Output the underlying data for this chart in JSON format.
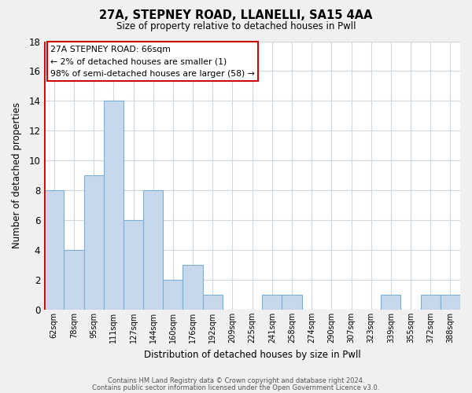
{
  "title1": "27A, STEPNEY ROAD, LLANELLI, SA15 4AA",
  "title2": "Size of property relative to detached houses in Pwll",
  "xlabel": "Distribution of detached houses by size in Pwll",
  "ylabel": "Number of detached properties",
  "bar_labels": [
    "62sqm",
    "78sqm",
    "95sqm",
    "111sqm",
    "127sqm",
    "144sqm",
    "160sqm",
    "176sqm",
    "192sqm",
    "209sqm",
    "225sqm",
    "241sqm",
    "258sqm",
    "274sqm",
    "290sqm",
    "307sqm",
    "323sqm",
    "339sqm",
    "355sqm",
    "372sqm",
    "388sqm"
  ],
  "bar_values": [
    8,
    4,
    9,
    14,
    6,
    8,
    2,
    3,
    1,
    0,
    0,
    1,
    1,
    0,
    0,
    0,
    0,
    1,
    0,
    1,
    1
  ],
  "bar_color": "#c8d8ec",
  "bar_edgecolor": "#7bafd4",
  "annotation_line1": "27A STEPNEY ROAD: 66sqm",
  "annotation_line2": "← 2% of detached houses are smaller (1)",
  "annotation_line3": "98% of semi-detached houses are larger (58) →",
  "ylim": [
    0,
    18
  ],
  "yticks": [
    0,
    2,
    4,
    6,
    8,
    10,
    12,
    14,
    16,
    18
  ],
  "footer1": "Contains HM Land Registry data © Crown copyright and database right 2024.",
  "footer2": "Contains public sector information licensed under the Open Government Licence v3.0.",
  "background_color": "#f0f0f0",
  "plot_background": "#ffffff",
  "grid_color": "#d0d8e0",
  "red_line_color": "#cc0000",
  "annotation_box_edgecolor": "#cc0000"
}
